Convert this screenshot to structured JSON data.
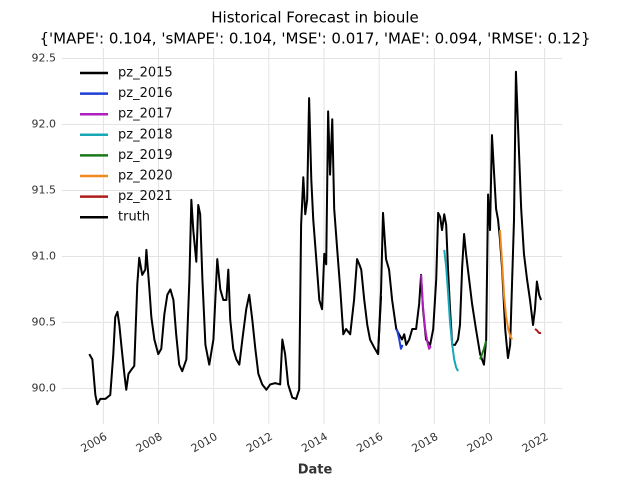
{
  "chart_data": {
    "type": "line",
    "title": "Historical Forecast in bioule",
    "subtitle": "{'MAPE': 0.104, 'sMAPE': 0.104, 'MSE': 0.017, 'MAE': 0.094, 'RMSE': 0.12}",
    "x_label": "Date",
    "xlim": [
      2004.5,
      2022.63
    ],
    "ylim": [
      89.73,
      92.58
    ],
    "xticks": [
      2006,
      2008,
      2010,
      2012,
      2014,
      2016,
      2018,
      2020,
      2022
    ],
    "yticks": [
      {
        "value": 90,
        "label": "90.0"
      },
      90.5,
      {
        "value": 91,
        "label": "91.0"
      },
      91.5,
      {
        "value": 92,
        "label": "92.0"
      },
      92.5
    ],
    "grid": true,
    "legend": "upper left",
    "series": [
      {
        "name": "pz_2015",
        "color": "#000000",
        "x": [
          2015.96,
          2016.07
        ],
        "values": [
          90.26,
          90.7
        ]
      },
      {
        "name": "pz_2016",
        "color": "#1f3fd6",
        "x": [
          2016.64,
          2016.72,
          2016.79,
          2016.85
        ],
        "values": [
          90.45,
          90.38,
          90.3,
          90.33
        ]
      },
      {
        "name": "pz_2017",
        "color": "#b01ec0",
        "x": [
          2017.52,
          2017.59,
          2017.67,
          2017.74,
          2017.81,
          2017.88
        ],
        "values": [
          90.86,
          90.62,
          90.45,
          90.36,
          90.3,
          90.32
        ]
      },
      {
        "name": "pz_2018",
        "color": "#17a8b8",
        "x": [
          2018.36,
          2018.43,
          2018.5,
          2018.57,
          2018.65,
          2018.72,
          2018.79,
          2018.86
        ],
        "values": [
          91.05,
          90.92,
          90.72,
          90.5,
          90.33,
          90.22,
          90.16,
          90.13
        ]
      },
      {
        "name": "pz_2019",
        "color": "#1a7a1a",
        "x": [
          2019.66,
          2019.73,
          2019.8,
          2019.88
        ],
        "values": [
          90.22,
          90.26,
          90.3,
          90.36
        ]
      },
      {
        "name": "pz_2020",
        "color": "#f08a1c",
        "x": [
          2020.38,
          2020.46,
          2020.53,
          2020.6,
          2020.68,
          2020.75,
          2020.82
        ],
        "values": [
          91.2,
          90.95,
          90.7,
          90.55,
          90.45,
          90.4,
          90.37
        ]
      },
      {
        "name": "pz_2021",
        "color": "#b01c1c",
        "x": [
          2021.65,
          2021.72,
          2021.8,
          2021.87
        ],
        "values": [
          90.45,
          90.44,
          90.42,
          90.42
        ]
      },
      {
        "name": "truth",
        "color": "#000000",
        "x": [
          2005.49,
          2005.6,
          2005.71,
          2005.78,
          2005.89,
          2006.07,
          2006.25,
          2006.36,
          2006.43,
          2006.51,
          2006.58,
          2006.65,
          2006.76,
          2006.83,
          2006.91,
          2007.01,
          2007.12,
          2007.23,
          2007.3,
          2007.41,
          2007.52,
          2007.56,
          2007.67,
          2007.74,
          2007.85,
          2007.99,
          2008.1,
          2008.21,
          2008.32,
          2008.43,
          2008.54,
          2008.64,
          2008.75,
          2008.86,
          2009.01,
          2009.12,
          2009.19,
          2009.26,
          2009.37,
          2009.44,
          2009.51,
          2009.59,
          2009.7,
          2009.84,
          2009.99,
          2010.13,
          2010.24,
          2010.35,
          2010.46,
          2010.53,
          2010.6,
          2010.71,
          2010.82,
          2010.93,
          2011.04,
          2011.18,
          2011.29,
          2011.4,
          2011.51,
          2011.62,
          2011.76,
          2011.91,
          2012.05,
          2012.23,
          2012.41,
          2012.49,
          2012.59,
          2012.7,
          2012.85,
          2012.99,
          2013.1,
          2013.17,
          2013.25,
          2013.32,
          2013.39,
          2013.46,
          2013.54,
          2013.61,
          2013.72,
          2013.83,
          2013.93,
          2014.01,
          2014.08,
          2014.15,
          2014.22,
          2014.3,
          2014.37,
          2014.48,
          2014.59,
          2014.7,
          2014.8,
          2014.95,
          2015.09,
          2015.2,
          2015.28,
          2015.35,
          2015.46,
          2015.57,
          2015.67,
          2015.82,
          2015.96,
          2016.07,
          2016.14,
          2016.25,
          2016.36,
          2016.47,
          2016.62,
          2016.72,
          2016.83,
          2016.91,
          2016.98,
          2017.09,
          2017.2,
          2017.34,
          2017.45,
          2017.52,
          2017.59,
          2017.7,
          2017.85,
          2017.96,
          2018.07,
          2018.14,
          2018.21,
          2018.28,
          2018.36,
          2018.43,
          2018.5,
          2018.57,
          2018.65,
          2018.75,
          2018.86,
          2018.93,
          2019.01,
          2019.08,
          2019.15,
          2019.26,
          2019.37,
          2019.51,
          2019.66,
          2019.8,
          2019.88,
          2019.95,
          2020.02,
          2020.09,
          2020.17,
          2020.24,
          2020.31,
          2020.38,
          2020.46,
          2020.57,
          2020.67,
          2020.75,
          2020.89,
          2020.96,
          2021.04,
          2021.15,
          2021.25,
          2021.36,
          2021.47,
          2021.58,
          2021.65,
          2021.72,
          2021.8,
          2021.87
        ],
        "values": [
          90.26,
          90.22,
          89.95,
          89.88,
          89.92,
          89.92,
          89.95,
          90.26,
          90.54,
          90.58,
          90.48,
          90.33,
          90.11,
          89.99,
          90.11,
          90.14,
          90.17,
          90.79,
          90.99,
          90.86,
          90.9,
          91.05,
          90.75,
          90.54,
          90.37,
          90.26,
          90.3,
          90.56,
          90.71,
          90.75,
          90.67,
          90.41,
          90.18,
          90.13,
          90.22,
          90.83,
          91.43,
          91.2,
          90.96,
          91.39,
          91.32,
          90.83,
          90.33,
          90.18,
          90.37,
          90.98,
          90.75,
          90.67,
          90.67,
          90.9,
          90.52,
          90.3,
          90.22,
          90.18,
          90.37,
          90.6,
          90.71,
          90.52,
          90.3,
          90.11,
          90.03,
          89.99,
          90.03,
          90.04,
          90.03,
          90.37,
          90.26,
          90.03,
          89.93,
          89.92,
          89.99,
          91.24,
          91.6,
          91.32,
          91.43,
          92.2,
          91.58,
          91.28,
          90.98,
          90.67,
          90.6,
          91.02,
          90.94,
          92.1,
          91.62,
          92.04,
          91.36,
          91.05,
          90.75,
          90.41,
          90.45,
          90.41,
          90.67,
          90.98,
          90.94,
          90.9,
          90.67,
          90.48,
          90.37,
          90.31,
          90.26,
          90.75,
          91.33,
          90.98,
          90.9,
          90.67,
          90.45,
          90.41,
          90.37,
          90.41,
          90.33,
          90.37,
          90.45,
          90.45,
          90.64,
          90.86,
          90.6,
          90.37,
          90.33,
          90.45,
          90.83,
          91.33,
          91.3,
          91.2,
          91.32,
          91.24,
          90.89,
          90.6,
          90.33,
          90.33,
          90.37,
          90.48,
          90.92,
          91.17,
          91.02,
          90.83,
          90.64,
          90.45,
          90.26,
          90.18,
          90.37,
          91.47,
          91.2,
          91.92,
          91.62,
          91.36,
          91.28,
          91.13,
          90.9,
          90.45,
          90.23,
          90.33,
          91.28,
          92.4,
          91.96,
          91.36,
          91.02,
          90.83,
          90.67,
          90.48,
          90.6,
          90.81,
          90.71,
          90.67
        ]
      }
    ]
  }
}
